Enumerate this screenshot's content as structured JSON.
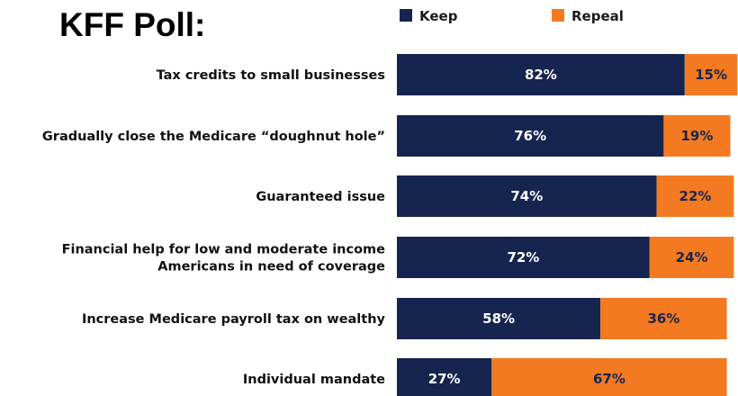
{
  "title": "KFF Poll:",
  "chart_data": {
    "type": "bar",
    "orientation": "horizontal",
    "stacked": true,
    "categories": [
      [
        "Tax credits to small businesses"
      ],
      [
        "Gradually close the Medicare “doughnut hole”"
      ],
      [
        "Guaranteed issue"
      ],
      [
        "Financial help for low and moderate income",
        "Americans in need of coverage"
      ],
      [
        "Increase Medicare payroll tax on wealthy"
      ],
      [
        "Individual mandate"
      ]
    ],
    "series": [
      {
        "name": "Keep",
        "values": [
          82,
          76,
          74,
          72,
          58,
          27
        ],
        "labels": [
          "82%",
          "76%",
          "74%",
          "72%",
          "58%",
          "27%"
        ],
        "color": "#16254f",
        "label_color": "#ffffff"
      },
      {
        "name": "Repeal",
        "values": [
          15,
          19,
          22,
          24,
          36,
          67
        ],
        "labels": [
          "15%",
          "19%",
          "22%",
          "24%",
          "36%",
          "67%"
        ],
        "color": "#f47a21",
        "label_color": "#16254f"
      }
    ],
    "legend_position": "top",
    "unit": "%",
    "grid": false
  }
}
